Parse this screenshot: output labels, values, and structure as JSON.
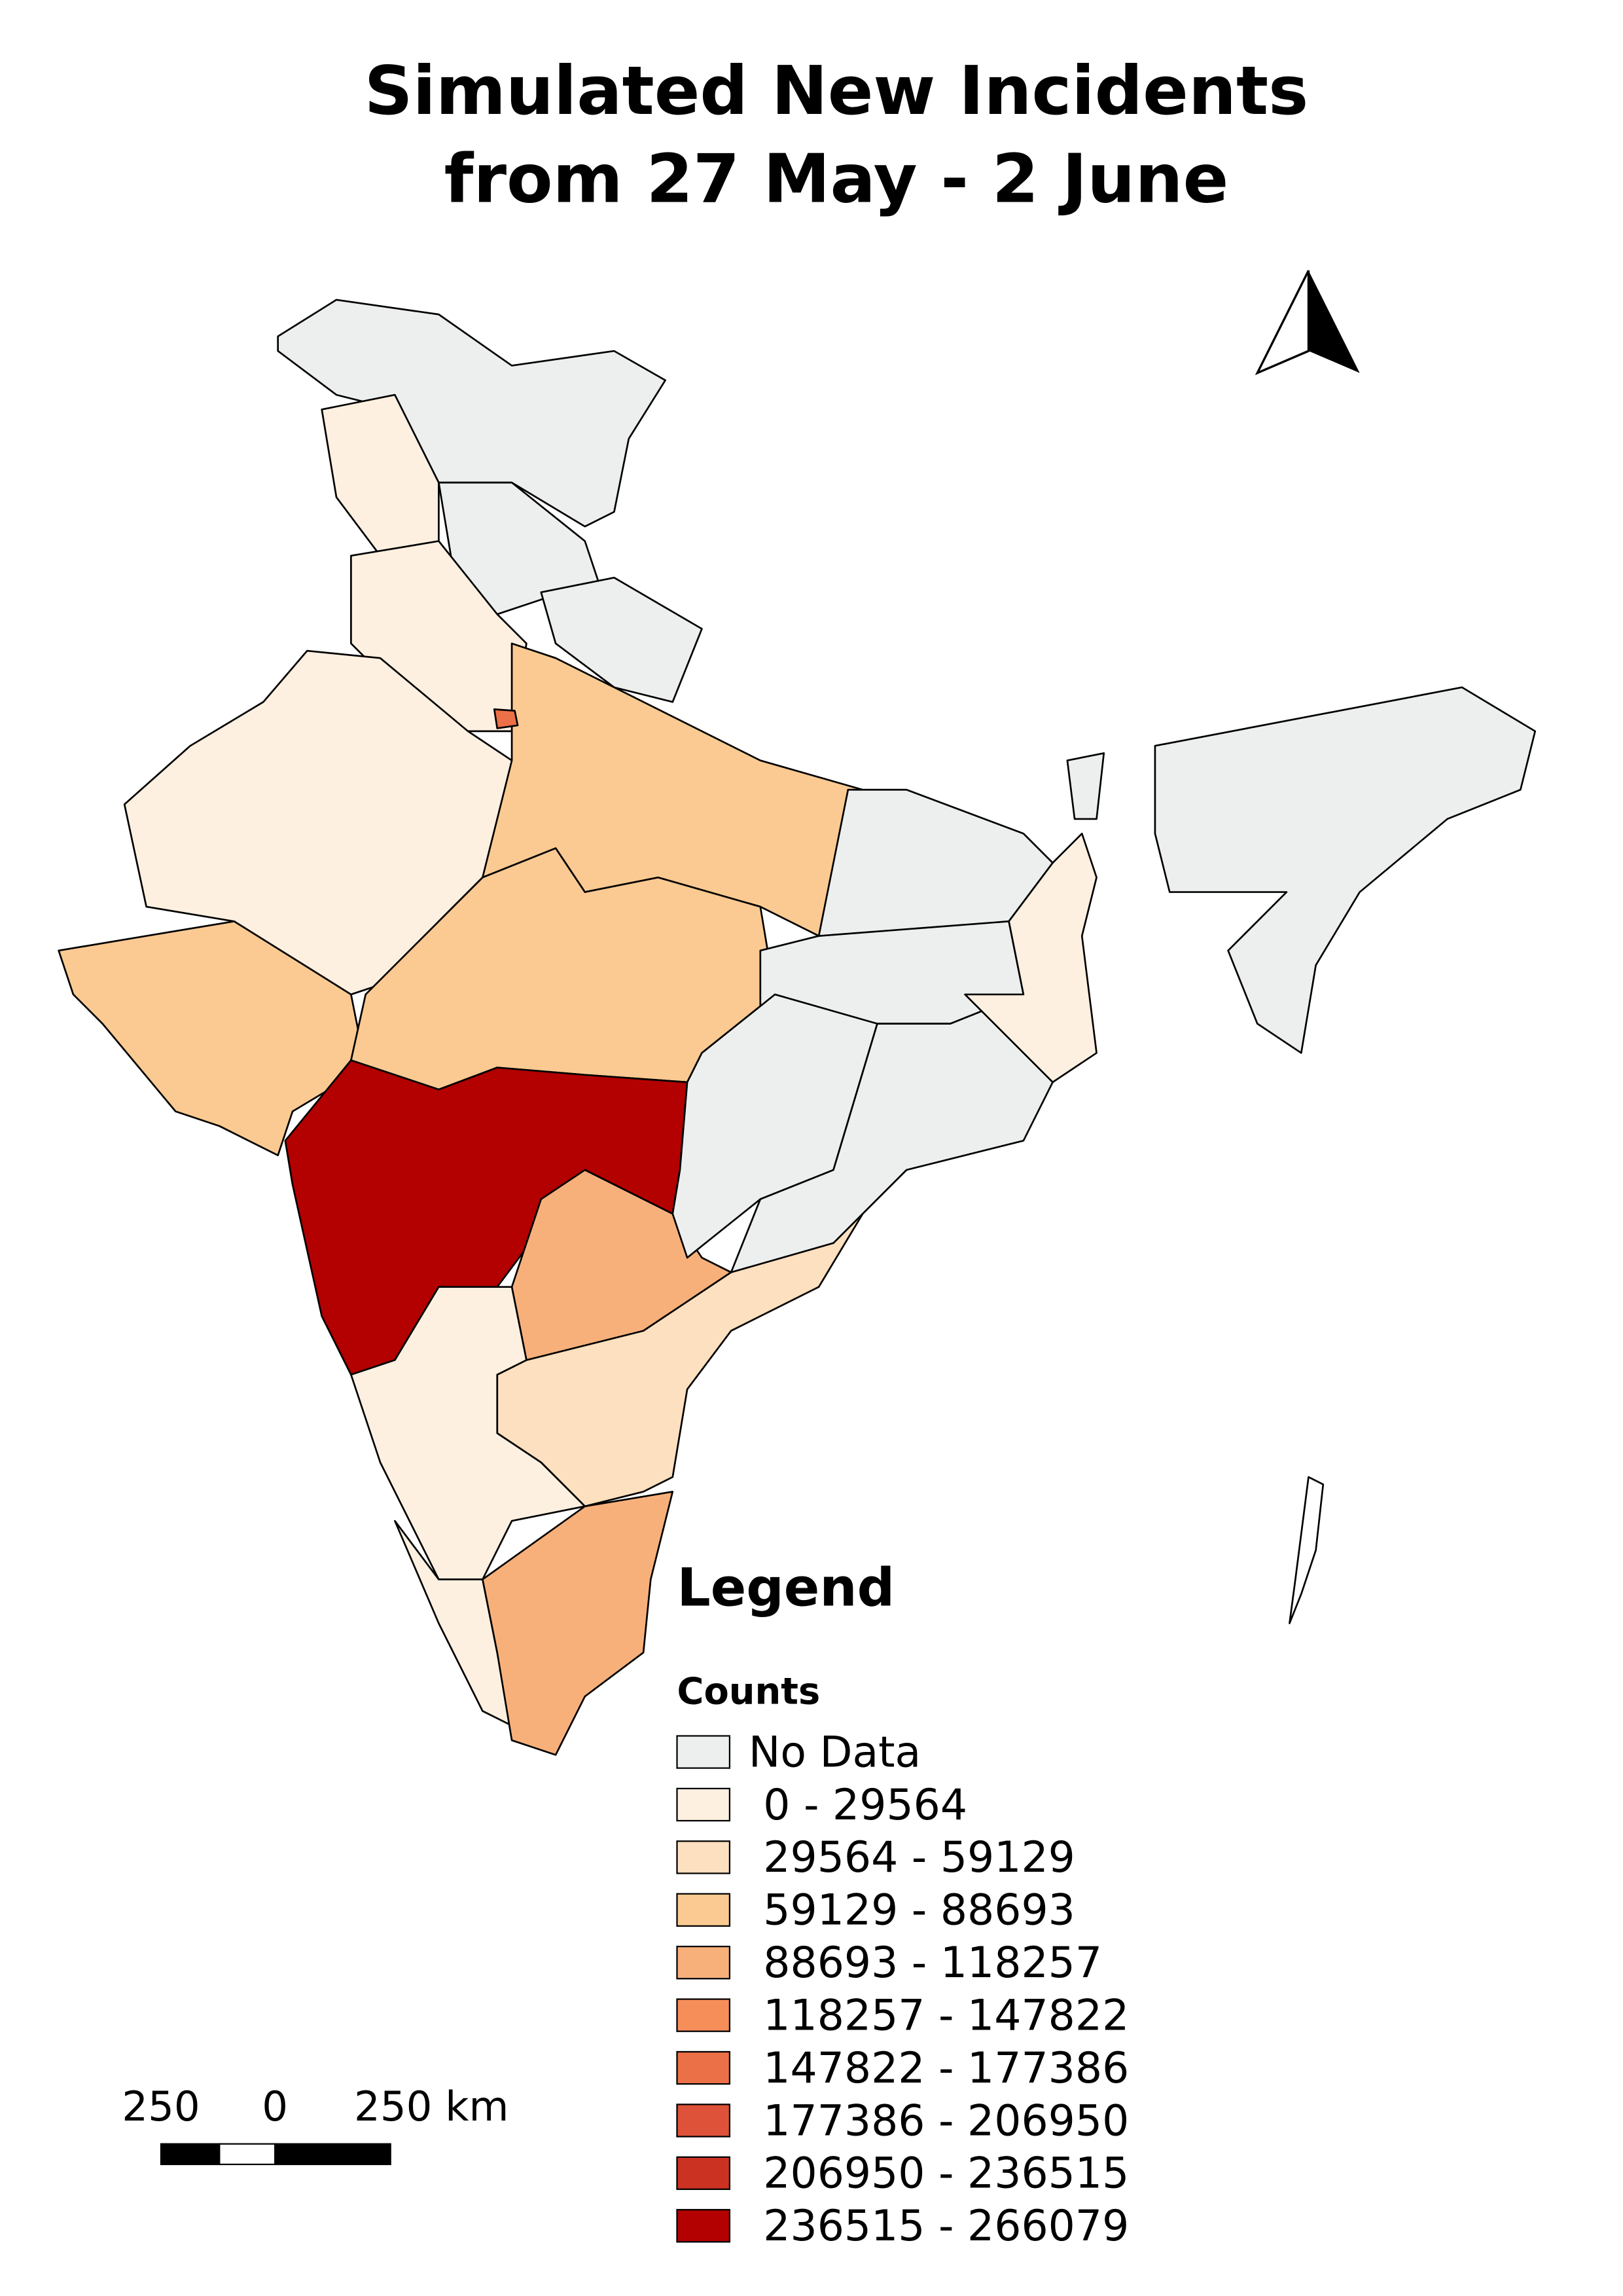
{
  "map": {
    "title_lines": [
      "Simulated New Incidents",
      "from 27 May - 2 June"
    ],
    "legend": {
      "title": "Legend",
      "subtitle": "Counts",
      "items": [
        {
          "label": "No Data",
          "color": "#edefef"
        },
        {
          "label": "0 - 29564",
          "color": "#fef0e0"
        },
        {
          "label": "29564 - 59129",
          "color": "#fde0bf"
        },
        {
          "label": "59129 - 88693",
          "color": "#fbca92"
        },
        {
          "label": "88693 - 118257",
          "color": "#f8b07b"
        },
        {
          "label": "118257 - 147822",
          "color": "#f68e5a"
        },
        {
          "label": "147822 - 177386",
          "color": "#ec7047"
        },
        {
          "label": "177386 - 206950",
          "color": "#df523a"
        },
        {
          "label": "206950 - 236515",
          "color": "#cb3222"
        },
        {
          "label": "236515 - 266079",
          "color": "#b30000"
        }
      ]
    },
    "scale_bar": {
      "labels": [
        "250",
        "0",
        "250 km"
      ]
    }
  }
}
